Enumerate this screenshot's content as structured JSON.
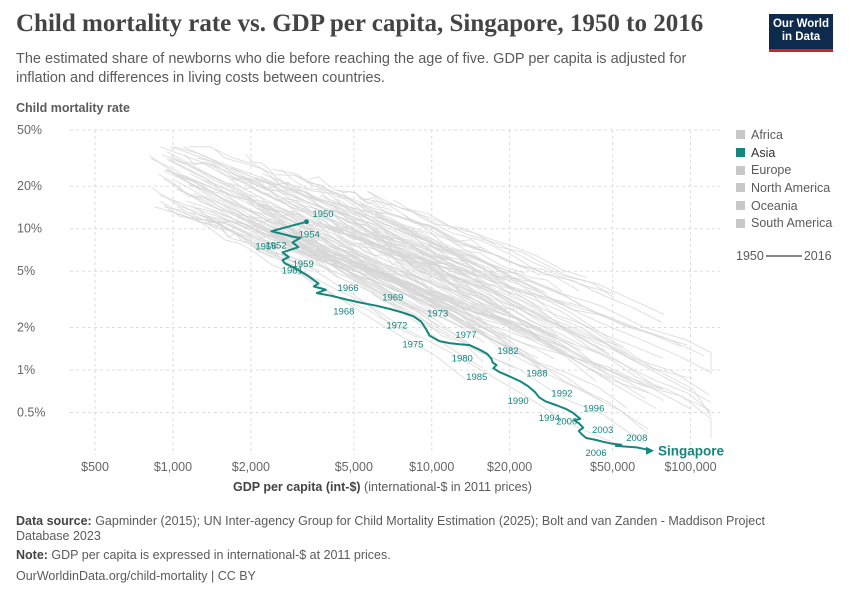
{
  "header": {
    "title": "Child mortality rate vs. GDP per capita, Singapore, 1950 to 2016",
    "subtitle": "The estimated share of newborns who die before reaching the age of five. GDP per capita is adjusted for inflation and differences in living costs between countries.",
    "logo_line1": "Our World",
    "logo_line2": "in Data"
  },
  "axes": {
    "ylabel": "Child mortality rate",
    "xlabel_bold": "GDP per capita (int-$)",
    "xlabel_rest": " (international-$ in 2011 prices)"
  },
  "legend": {
    "items": [
      {
        "label": "Africa",
        "active": false
      },
      {
        "label": "Asia",
        "active": true
      },
      {
        "label": "Europe",
        "active": false
      },
      {
        "label": "North America",
        "active": false
      },
      {
        "label": "Oceania",
        "active": false
      },
      {
        "label": "South America",
        "active": false
      }
    ],
    "timeline_start": "1950",
    "timeline_end": "2016"
  },
  "footer": {
    "source_label": "Data source:",
    "source_text": " Gapminder (2015); UN Inter-agency Group for Child Mortality Estimation (2025); Bolt and van Zanden - Maddison Project Database 2023",
    "note_label": "Note:",
    "note_text": " GDP per capita is expressed in international-$ at 2011 prices.",
    "url_text": "OurWorldinData.org/child-mortality | CC BY"
  },
  "colors": {
    "highlight": "#14867e",
    "background_lines": "#d6d6d6",
    "grid": "#dddddd"
  },
  "chart_data": {
    "type": "line",
    "x_scale": "log",
    "y_scale": "log",
    "xlim": [
      400,
      130000
    ],
    "ylim": [
      0.25,
      50
    ],
    "x_ticks": [
      {
        "value": 500,
        "label": "$500"
      },
      {
        "value": 1000,
        "label": "$1,000"
      },
      {
        "value": 2000,
        "label": "$2,000"
      },
      {
        "value": 5000,
        "label": "$5,000"
      },
      {
        "value": 10000,
        "label": "$10,000"
      },
      {
        "value": 20000,
        "label": "$20,000"
      },
      {
        "value": 50000,
        "label": "$50,000"
      },
      {
        "value": 100000,
        "label": "$100,000"
      }
    ],
    "y_ticks": [
      {
        "value": 0.5,
        "label": "0.5%"
      },
      {
        "value": 1,
        "label": "1%"
      },
      {
        "value": 2,
        "label": "2%"
      },
      {
        "value": 5,
        "label": "5%"
      },
      {
        "value": 10,
        "label": "10%"
      },
      {
        "value": 20,
        "label": "20%"
      },
      {
        "value": 50,
        "label": "50%"
      }
    ],
    "highlighted_series": {
      "name": "Singapore",
      "points": [
        {
          "year": 1950,
          "gdp": 3280,
          "cm": 11.2
        },
        {
          "year": 1951,
          "gdp": 2400,
          "cm": 9.6
        },
        {
          "year": 1952,
          "gdp": 2900,
          "cm": 8.8
        },
        {
          "year": 1953,
          "gdp": 3100,
          "cm": 8.6
        },
        {
          "year": 1954,
          "gdp": 2900,
          "cm": 8.0
        },
        {
          "year": 1955,
          "gdp": 3050,
          "cm": 7.4
        },
        {
          "year": 1956,
          "gdp": 2650,
          "cm": 6.8
        },
        {
          "year": 1957,
          "gdp": 2800,
          "cm": 6.3
        },
        {
          "year": 1958,
          "gdp": 2650,
          "cm": 6.0
        },
        {
          "year": 1959,
          "gdp": 2700,
          "cm": 5.7
        },
        {
          "year": 1960,
          "gdp": 3000,
          "cm": 5.2
        },
        {
          "year": 1961,
          "gdp": 3350,
          "cm": 4.6
        },
        {
          "year": 1962,
          "gdp": 3650,
          "cm": 4.1
        },
        {
          "year": 1963,
          "gdp": 3500,
          "cm": 3.9
        },
        {
          "year": 1964,
          "gdp": 3900,
          "cm": 3.7
        },
        {
          "year": 1965,
          "gdp": 3600,
          "cm": 3.5
        },
        {
          "year": 1966,
          "gdp": 4100,
          "cm": 3.35
        },
        {
          "year": 1967,
          "gdp": 4700,
          "cm": 3.15
        },
        {
          "year": 1968,
          "gdp": 5300,
          "cm": 3.0
        },
        {
          "year": 1969,
          "gdp": 6100,
          "cm": 2.85
        },
        {
          "year": 1970,
          "gdp": 6900,
          "cm": 2.7
        },
        {
          "year": 1971,
          "gdp": 7700,
          "cm": 2.55
        },
        {
          "year": 1972,
          "gdp": 8500,
          "cm": 2.4
        },
        {
          "year": 1973,
          "gdp": 9100,
          "cm": 2.2
        },
        {
          "year": 1974,
          "gdp": 9500,
          "cm": 1.95
        },
        {
          "year": 1975,
          "gdp": 9800,
          "cm": 1.75
        },
        {
          "year": 1976,
          "gdp": 10700,
          "cm": 1.6
        },
        {
          "year": 1977,
          "gdp": 11700,
          "cm": 1.55
        },
        {
          "year": 1978,
          "gdp": 12800,
          "cm": 1.52
        },
        {
          "year": 1979,
          "gdp": 14000,
          "cm": 1.5
        },
        {
          "year": 1980,
          "gdp": 15200,
          "cm": 1.4
        },
        {
          "year": 1981,
          "gdp": 16400,
          "cm": 1.3
        },
        {
          "year": 1982,
          "gdp": 17000,
          "cm": 1.2
        },
        {
          "year": 1983,
          "gdp": 17200,
          "cm": 1.13
        },
        {
          "year": 1984,
          "gdp": 17800,
          "cm": 1.08
        },
        {
          "year": 1985,
          "gdp": 17300,
          "cm": 1.03
        },
        {
          "year": 1986,
          "gdp": 18200,
          "cm": 0.97
        },
        {
          "year": 1987,
          "gdp": 20000,
          "cm": 0.9
        },
        {
          "year": 1988,
          "gdp": 22000,
          "cm": 0.83
        },
        {
          "year": 1989,
          "gdp": 23500,
          "cm": 0.77
        },
        {
          "year": 1990,
          "gdp": 25000,
          "cm": 0.7
        },
        {
          "year": 1991,
          "gdp": 26000,
          "cm": 0.64
        },
        {
          "year": 1992,
          "gdp": 27500,
          "cm": 0.6
        },
        {
          "year": 1993,
          "gdp": 30500,
          "cm": 0.56
        },
        {
          "year": 1994,
          "gdp": 33000,
          "cm": 0.53
        },
        {
          "year": 1995,
          "gdp": 35000,
          "cm": 0.5
        },
        {
          "year": 1996,
          "gdp": 36500,
          "cm": 0.47
        },
        {
          "year": 1997,
          "gdp": 37500,
          "cm": 0.45
        },
        {
          "year": 1998,
          "gdp": 35500,
          "cm": 0.44
        },
        {
          "year": 1999,
          "gdp": 37000,
          "cm": 0.42
        },
        {
          "year": 2000,
          "gdp": 38500,
          "cm": 0.39
        },
        {
          "year": 2001,
          "gdp": 37000,
          "cm": 0.37
        },
        {
          "year": 2002,
          "gdp": 38000,
          "cm": 0.35
        },
        {
          "year": 2003,
          "gdp": 39500,
          "cm": 0.33
        },
        {
          "year": 2004,
          "gdp": 43000,
          "cm": 0.32
        },
        {
          "year": 2005,
          "gdp": 46000,
          "cm": 0.31
        },
        {
          "year": 2006,
          "gdp": 50000,
          "cm": 0.3
        },
        {
          "year": 2007,
          "gdp": 54000,
          "cm": 0.295
        },
        {
          "year": 2008,
          "gdp": 53500,
          "cm": 0.29
        },
        {
          "year": 2009,
          "gdp": 51500,
          "cm": 0.29
        },
        {
          "year": 2010,
          "gdp": 59000,
          "cm": 0.285
        },
        {
          "year": 2011,
          "gdp": 62000,
          "cm": 0.283
        },
        {
          "year": 2012,
          "gdp": 63500,
          "cm": 0.28
        },
        {
          "year": 2013,
          "gdp": 65500,
          "cm": 0.277
        },
        {
          "year": 2014,
          "gdp": 67500,
          "cm": 0.274
        },
        {
          "year": 2015,
          "gdp": 69500,
          "cm": 0.271
        },
        {
          "year": 2016,
          "gdp": 71000,
          "cm": 0.268
        }
      ],
      "year_labels": [
        {
          "year": 1950,
          "text": "1950",
          "side": "right-above"
        },
        {
          "year": 1952,
          "text": "1952",
          "side": "left-below"
        },
        {
          "year": 1954,
          "text": "1954",
          "side": "right-above"
        },
        {
          "year": 1956,
          "text": "1956",
          "side": "left-above"
        },
        {
          "year": 1959,
          "text": "1959",
          "side": "right"
        },
        {
          "year": 1961,
          "text": "1961",
          "side": "left-above"
        },
        {
          "year": 1966,
          "text": "1966",
          "side": "right-above"
        },
        {
          "year": 1968,
          "text": "1968",
          "side": "left-below"
        },
        {
          "year": 1969,
          "text": "1969",
          "side": "right-above"
        },
        {
          "year": 1972,
          "text": "1972",
          "side": "left-below"
        },
        {
          "year": 1973,
          "text": "1973",
          "side": "right-above"
        },
        {
          "year": 1975,
          "text": "1975",
          "side": "left-below"
        },
        {
          "year": 1977,
          "text": "1977",
          "side": "right-above"
        },
        {
          "year": 1980,
          "text": "1980",
          "side": "left-below"
        },
        {
          "year": 1982,
          "text": "1982",
          "side": "right-above"
        },
        {
          "year": 1985,
          "text": "1985",
          "side": "left-below"
        },
        {
          "year": 1988,
          "text": "1988",
          "side": "right-above"
        },
        {
          "year": 1990,
          "text": "1990",
          "side": "left-below"
        },
        {
          "year": 1992,
          "text": "1992",
          "side": "right-above"
        },
        {
          "year": 1994,
          "text": "1994",
          "side": "left-below"
        },
        {
          "year": 1996,
          "text": "1996",
          "side": "right-above"
        },
        {
          "year": 2000,
          "text": "2000",
          "side": "left-above"
        },
        {
          "year": 2003,
          "text": "2003",
          "side": "right-above"
        },
        {
          "year": 2006,
          "text": "2006",
          "side": "left-below"
        },
        {
          "year": 2008,
          "text": "2008",
          "side": "right-above"
        }
      ],
      "end_label": "Singapore"
    },
    "background_series_note": "other countries shown as faint grey lines (values not individually labeled)"
  }
}
